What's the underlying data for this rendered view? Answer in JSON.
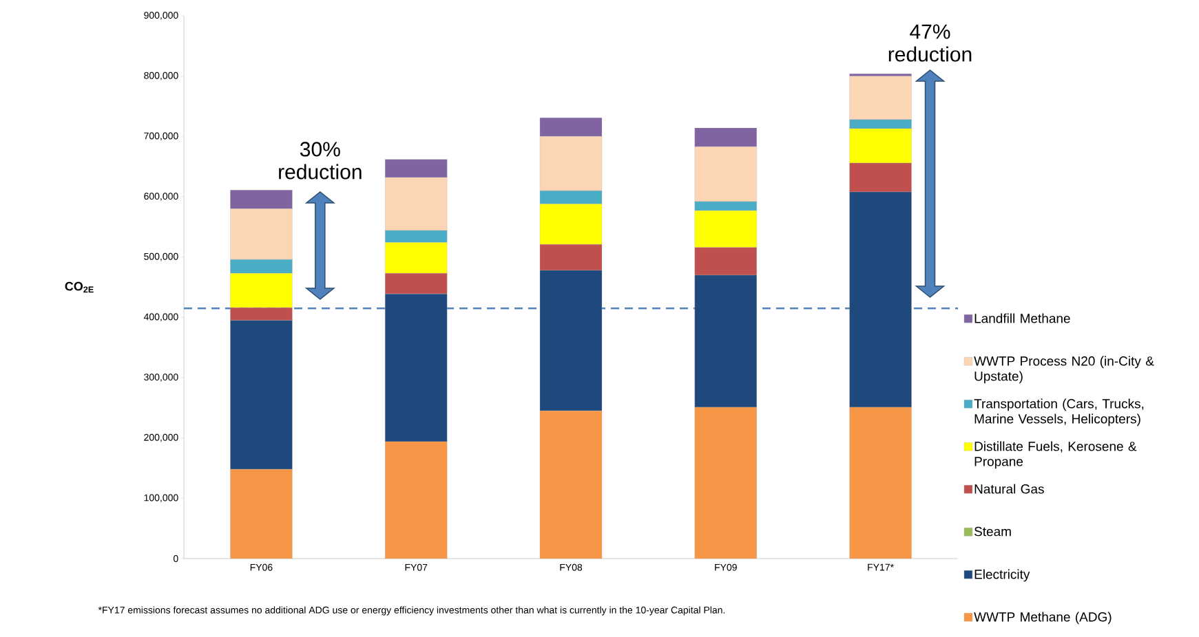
{
  "chart_data": {
    "type": "bar",
    "stacked": true,
    "ylabel": "CO$_{2E}$",
    "categories": [
      "FY06",
      "FY07",
      "FY08",
      "FY09",
      "FY17*"
    ],
    "series": [
      {
        "name": "WWTP Methane (ADG)",
        "color": "#f79646",
        "values": [
          148000,
          194000,
          245000,
          251000,
          251000
        ]
      },
      {
        "name": "Electricity",
        "color": "#1f497d",
        "values": [
          247000,
          245000,
          233000,
          219000,
          357000
        ]
      },
      {
        "name": "Steam",
        "color": "#9bbb59",
        "values": [
          0,
          0,
          0,
          0,
          0
        ]
      },
      {
        "name": "Natural Gas",
        "color": "#c0504d",
        "values": [
          21000,
          34000,
          43000,
          46000,
          48000
        ]
      },
      {
        "name": "Distillate Fuels, Kerosene & Propane",
        "color": "#ffff00",
        "values": [
          57000,
          51000,
          67000,
          61000,
          57000
        ]
      },
      {
        "name": "Transportation (Cars, Trucks, Marine Vessels, Helicopters)",
        "color": "#4bacc6",
        "values": [
          23000,
          20000,
          22000,
          15000,
          15000
        ]
      },
      {
        "name": "WWTP Process N20 (in-City & Upstate)",
        "color": "#fcd5b5",
        "values": [
          84000,
          88000,
          90000,
          91000,
          72000
        ]
      },
      {
        "name": "Landfill Methane",
        "color": "#8064a2",
        "values": [
          31000,
          30000,
          31000,
          31000,
          4000
        ]
      }
    ],
    "ylim": [
      0,
      900000
    ],
    "yticks": [
      {
        "value": 0,
        "label": "0"
      },
      {
        "value": 100000,
        "label": "100,000"
      },
      {
        "value": 200000,
        "label": "200,000"
      },
      {
        "value": 300000,
        "label": "300,000"
      },
      {
        "value": 400000,
        "label": "400,000"
      },
      {
        "value": 500000,
        "label": "500,000"
      },
      {
        "value": 600000,
        "label": "600,000"
      },
      {
        "value": 700000,
        "label": "700,000"
      },
      {
        "value": 800000,
        "label": "800,000"
      },
      {
        "value": 900000,
        "label": "900,000"
      }
    ],
    "ref_lines": [
      {
        "axis": "y",
        "value": 415000,
        "color": "#4f81bd",
        "line_style": "dashed"
      }
    ],
    "legend": "right",
    "annotations": [
      "30% reduction",
      "47% reduction",
      "*FY17 emissions forecast assumes no additional ADG use or energy efficiency investments  other than what is currently in the 10-year Capital Plan."
    ]
  }
}
